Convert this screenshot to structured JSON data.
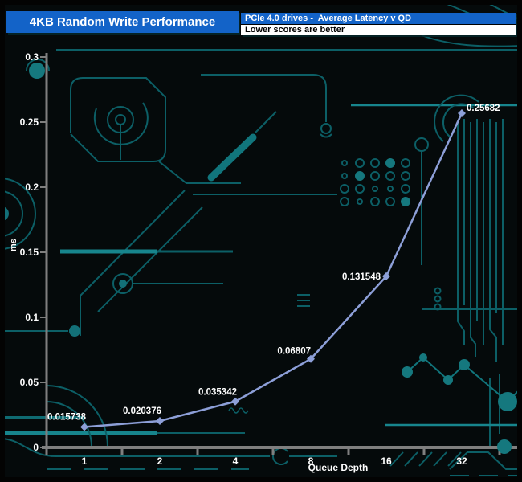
{
  "header": {
    "title": "4KB Random Write Performance",
    "subtitle_top": "PCIe 4.0 drives -  Average Latency v QD",
    "subtitle_bottom": "Lower scores are better"
  },
  "chart_data": {
    "type": "line",
    "title": "4KB Random Write Performance",
    "categories": [
      "1",
      "2",
      "4",
      "8",
      "16",
      "32"
    ],
    "series": [
      {
        "name": "PCIe 4.0 drives",
        "values": [
          0.015738,
          0.020376,
          0.035342,
          0.06807,
          0.131548,
          0.25682
        ]
      }
    ],
    "point_labels": [
      "0.015738",
      "0.020376",
      "0.035342",
      "0.06807",
      "0.131548",
      "0.25682"
    ],
    "xlabel": "Queue Depth",
    "ylabel": "ms",
    "ylim": [
      0,
      0.3
    ],
    "ytick_step": 0.05,
    "ytick_labels": [
      "0",
      "0.05",
      "0.1",
      "0.15",
      "0.2",
      "0.25",
      "0.3"
    ],
    "grid": false,
    "legend": "none",
    "line_color": "#8d9fd8",
    "axis_color": "#7f7f7f",
    "text_color": "#ffffff"
  },
  "colors": {
    "header_blue": "#1363c8",
    "background": "#050a0b",
    "circuit_teal": "#0c5f66",
    "circuit_teal_bright": "#17858d",
    "circuit_fill": "#15787e"
  }
}
